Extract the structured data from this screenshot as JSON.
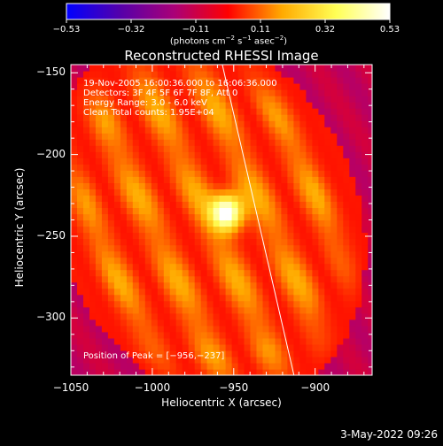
{
  "chart_data": {
    "type": "heatmap",
    "title": "Reconstructed RHESSI Image",
    "xlabel": "Heliocentric X (arcsec)",
    "ylabel": "Heliocentric Y (arcsec)",
    "xlim": [
      -1050,
      -865
    ],
    "ylim": [
      -335,
      -145
    ],
    "x_ticks": [
      -1050,
      -1000,
      -950,
      -900
    ],
    "y_ticks": [
      -150,
      -200,
      -250,
      -300
    ],
    "x_tick_labels": [
      "−1050",
      "−1000",
      "−950",
      "−900"
    ],
    "y_tick_labels": [
      "−150",
      "−200",
      "−250",
      "−300"
    ],
    "colorbar": {
      "range": [
        -0.53,
        0.53
      ],
      "ticks": [
        "−0.53",
        "−0.32",
        "−0.11",
        "0.11",
        "0.32",
        "0.53"
      ],
      "unit_prefix": "(photons cm",
      "unit_exp1": "−2",
      "unit_mid": " s",
      "unit_exp2": "−1",
      "unit_mid2": " asec",
      "unit_exp3": "−2",
      "unit_suffix": ")"
    },
    "annotations": {
      "time": "19-Nov-2005 16:00:36.000 to 16:06:36.000",
      "detectors": "Detectors: 3F 4F 5F 6F 7F 8F, Att 0",
      "energy": "Energy Range: 3.0 - 6.0 keV",
      "clean": "Clean    Total counts: 1.95E+04",
      "peak": "Position of Peak = [−956,−237]"
    },
    "peak_position": [
      -956,
      -237
    ],
    "peak_value": 0.53,
    "limb_line": [
      [
        -957,
        -145
      ],
      [
        -913,
        -335
      ]
    ],
    "colors": {
      "colormap": [
        "#0000ff",
        "#5500aa",
        "#aa0077",
        "#ff0000",
        "#ffaa00",
        "#ffff55",
        "#ffffff"
      ],
      "background": "#4a1a5a",
      "limb": "#ffffff"
    }
  },
  "footer": {
    "datestamp": "3-May-2022 09:26"
  }
}
